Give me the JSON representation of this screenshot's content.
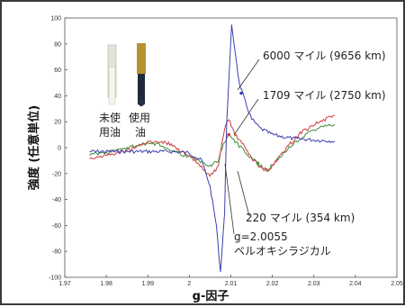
{
  "chart_data": {
    "type": "line",
    "xlabel": "g-因子",
    "ylabel": "強度 (任意単位)",
    "xlim": [
      1.97,
      2.05
    ],
    "ylim": [
      -100,
      100
    ],
    "xticks": [
      "1.97",
      "1.98",
      "1.99",
      "2",
      "2.01",
      "2.02",
      "2.03",
      "2.04",
      "2.05"
    ],
    "yticks": [
      "100",
      "80",
      "60",
      "40",
      "20",
      "0",
      "-20",
      "-40",
      "-60",
      "-80",
      "-100"
    ],
    "series": [
      {
        "name": "6000 マイル (9656 km)",
        "color": "#3b3fb0",
        "points": [
          [
            1.976,
            -3
          ],
          [
            1.985,
            -3
          ],
          [
            1.99,
            -3
          ],
          [
            1.995,
            -3
          ],
          [
            2.0,
            -4
          ],
          [
            2.003,
            -10
          ],
          [
            2.005,
            -30
          ],
          [
            2.0065,
            -60
          ],
          [
            2.0075,
            -96
          ],
          [
            2.0085,
            -50
          ],
          [
            2.009,
            20
          ],
          [
            2.0098,
            70
          ],
          [
            2.0102,
            94
          ],
          [
            2.011,
            75
          ],
          [
            2.012,
            50
          ],
          [
            2.0135,
            35
          ],
          [
            2.015,
            22
          ],
          [
            2.017,
            15
          ],
          [
            2.02,
            10
          ],
          [
            2.025,
            7
          ],
          [
            2.03,
            6
          ],
          [
            2.035,
            5
          ]
        ]
      },
      {
        "name": "1709 マイル (2750 km)",
        "color": "#d23a3a",
        "points": [
          [
            1.976,
            -8
          ],
          [
            1.98,
            -6
          ],
          [
            1.985,
            -2
          ],
          [
            1.99,
            4
          ],
          [
            1.993,
            5
          ],
          [
            1.996,
            2
          ],
          [
            1.999,
            -5
          ],
          [
            2.002,
            -12
          ],
          [
            2.005,
            -22
          ],
          [
            2.007,
            -15
          ],
          [
            2.0085,
            15
          ],
          [
            2.0095,
            22
          ],
          [
            2.011,
            10
          ],
          [
            2.013,
            2
          ],
          [
            2.015,
            -8
          ],
          [
            2.017,
            -15
          ],
          [
            2.019,
            -18
          ],
          [
            2.021,
            -10
          ],
          [
            2.024,
            2
          ],
          [
            2.027,
            12
          ],
          [
            2.03,
            18
          ],
          [
            2.033,
            22
          ],
          [
            2.035,
            25
          ]
        ]
      },
      {
        "name": "220 マイル (354 km)",
        "color": "#3f8f3f",
        "points": [
          [
            1.976,
            -5
          ],
          [
            1.98,
            -4
          ],
          [
            1.985,
            0
          ],
          [
            1.99,
            3
          ],
          [
            1.993,
            2
          ],
          [
            1.996,
            -2
          ],
          [
            1.999,
            -6
          ],
          [
            2.002,
            -10
          ],
          [
            2.005,
            -14
          ],
          [
            2.007,
            -10
          ],
          [
            2.0085,
            5
          ],
          [
            2.0095,
            10
          ],
          [
            2.011,
            5
          ],
          [
            2.013,
            -2
          ],
          [
            2.015,
            -8
          ],
          [
            2.017,
            -14
          ],
          [
            2.019,
            -17
          ],
          [
            2.021,
            -10
          ],
          [
            2.024,
            0
          ],
          [
            2.027,
            8
          ],
          [
            2.03,
            14
          ],
          [
            2.033,
            17
          ],
          [
            2.035,
            18
          ]
        ]
      }
    ],
    "annotations": [
      "6000 マイル (9656 km)",
      "1709 マイル (2750 km)",
      "220 マイル (354 km)",
      "g=2.0055",
      "ベルオキシラジカル"
    ],
    "photo_labels": [
      "未使",
      "用油",
      "使用",
      "油"
    ]
  }
}
